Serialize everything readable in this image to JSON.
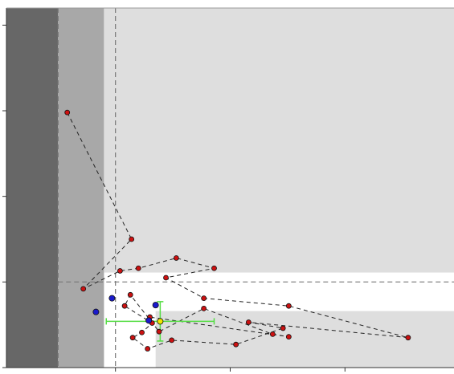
{
  "chart_data": {
    "type": "scatter",
    "xlim": [
      0.05,
      3.95
    ],
    "ylim": [
      0,
      4.2
    ],
    "xticks": [
      1,
      2,
      3
    ],
    "yticks": [
      0,
      1,
      2,
      3,
      4
    ],
    "shaded_regions": [
      {
        "x": [
          0.05,
          0.5
        ],
        "y": [
          0,
          4.2
        ],
        "color": "#676767"
      },
      {
        "x": [
          0.5,
          0.9
        ],
        "y": [
          0,
          4.2
        ],
        "color": "#a8a8a8"
      },
      {
        "x": [
          0.9,
          3.95
        ],
        "y": [
          1.11,
          4.2
        ],
        "color": "#dedede"
      },
      {
        "x": [
          1.35,
          3.95
        ],
        "y": [
          0,
          0.66
        ],
        "color": "#dedede"
      }
    ],
    "vlines": [
      0.5,
      1.0
    ],
    "hlines": [
      1.0
    ],
    "series": [
      {
        "color": "#cc1111",
        "connect": true,
        "x": [
          0.58,
          1.14,
          0.72,
          1.04,
          1.2,
          1.53,
          1.86,
          1.44,
          1.77,
          2.51,
          3.55,
          2.16,
          2.46,
          2.05,
          1.49,
          1.28,
          1.15,
          1.23,
          1.32,
          1.08,
          1.13,
          1.38,
          1.77,
          2.37,
          2.51,
          1.3
        ],
        "values": [
          2.98,
          1.5,
          0.92,
          1.13,
          1.16,
          1.28,
          1.16,
          1.05,
          0.81,
          0.72,
          0.35,
          0.53,
          0.46,
          0.27,
          0.32,
          0.22,
          0.35,
          0.41,
          0.52,
          0.72,
          0.85,
          0.42,
          0.69,
          0.39,
          0.36,
          0.59
        ]
      },
      {
        "color": "#1a1acc",
        "x": [
          0.83,
          0.97,
          1.35,
          1.29
        ],
        "values": [
          0.65,
          0.81,
          0.73,
          0.55
        ]
      },
      {
        "color": "#f2e600",
        "x": [
          1.39
        ],
        "values": [
          0.54
        ],
        "xerr": [
          0.47
        ],
        "yerr": [
          0.23
        ],
        "error_color": "#55dd44"
      }
    ]
  }
}
